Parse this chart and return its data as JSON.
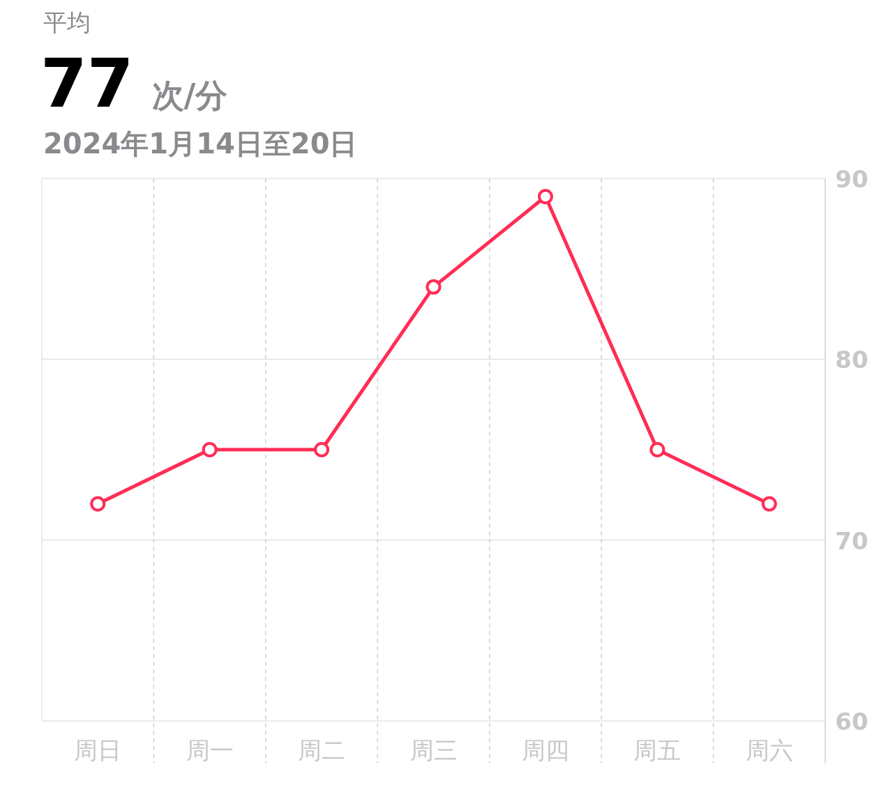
{
  "chart_data": {
    "type": "line",
    "title": "77",
    "annotations": [
      "平均",
      "次/分",
      "2024年1月14日至20日"
    ],
    "categories": [
      "周日",
      "周一",
      "周二",
      "周三",
      "周四",
      "周五",
      "周六"
    ],
    "ylim": [
      60,
      90
    ],
    "yticks": [
      60,
      70,
      80,
      90
    ],
    "grid": "y",
    "series": [
      {
        "marker": "circle",
        "color": "#ff2d55",
        "values": [
          72,
          75,
          75,
          84,
          89,
          75,
          72
        ]
      }
    ]
  }
}
